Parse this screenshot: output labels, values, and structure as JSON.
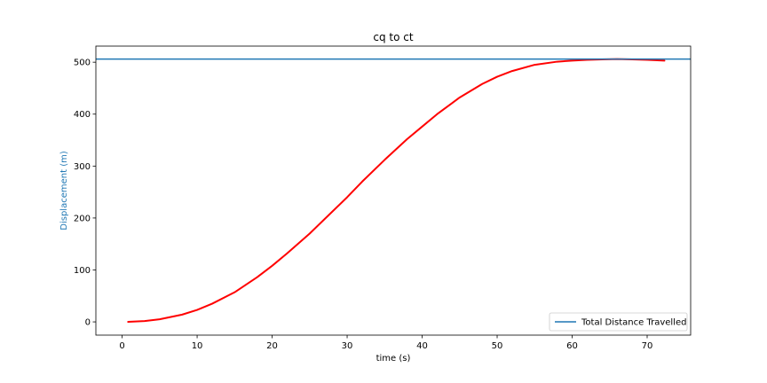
{
  "chart_data": {
    "type": "line",
    "title": "cq to ct",
    "xlabel": "time (s)",
    "ylabel": "Displacement (m)",
    "xlim": [
      -3.5,
      75.8
    ],
    "ylim": [
      -25.5,
      531
    ],
    "xticks": [
      0,
      10,
      20,
      30,
      40,
      50,
      60,
      70
    ],
    "yticks": [
      0,
      100,
      200,
      300,
      400,
      500
    ],
    "grid": false,
    "legend_position": "lower right",
    "series": [
      {
        "kind": "curve",
        "color": "#ff0000",
        "x": [
          0.8,
          3,
          5,
          8,
          10,
          12,
          15,
          18,
          20,
          22,
          25,
          28,
          30,
          32,
          35,
          38,
          40,
          42,
          45,
          48,
          50,
          52,
          55,
          58,
          60,
          62,
          64,
          66,
          68,
          70,
          72.3
        ],
        "y": [
          0,
          1.5,
          5,
          14,
          23,
          35,
          57,
          86,
          108,
          132,
          170,
          212,
          240,
          270,
          312,
          352,
          376,
          400,
          432,
          458,
          472,
          483,
          495,
          501,
          503,
          504.5,
          505.5,
          506,
          505.5,
          504.5,
          503
        ]
      },
      {
        "name": "Total Distance Travelled",
        "kind": "hline",
        "color": "#1f77b4",
        "y": 506
      }
    ],
    "ylabel_color": "#1f77b4"
  }
}
